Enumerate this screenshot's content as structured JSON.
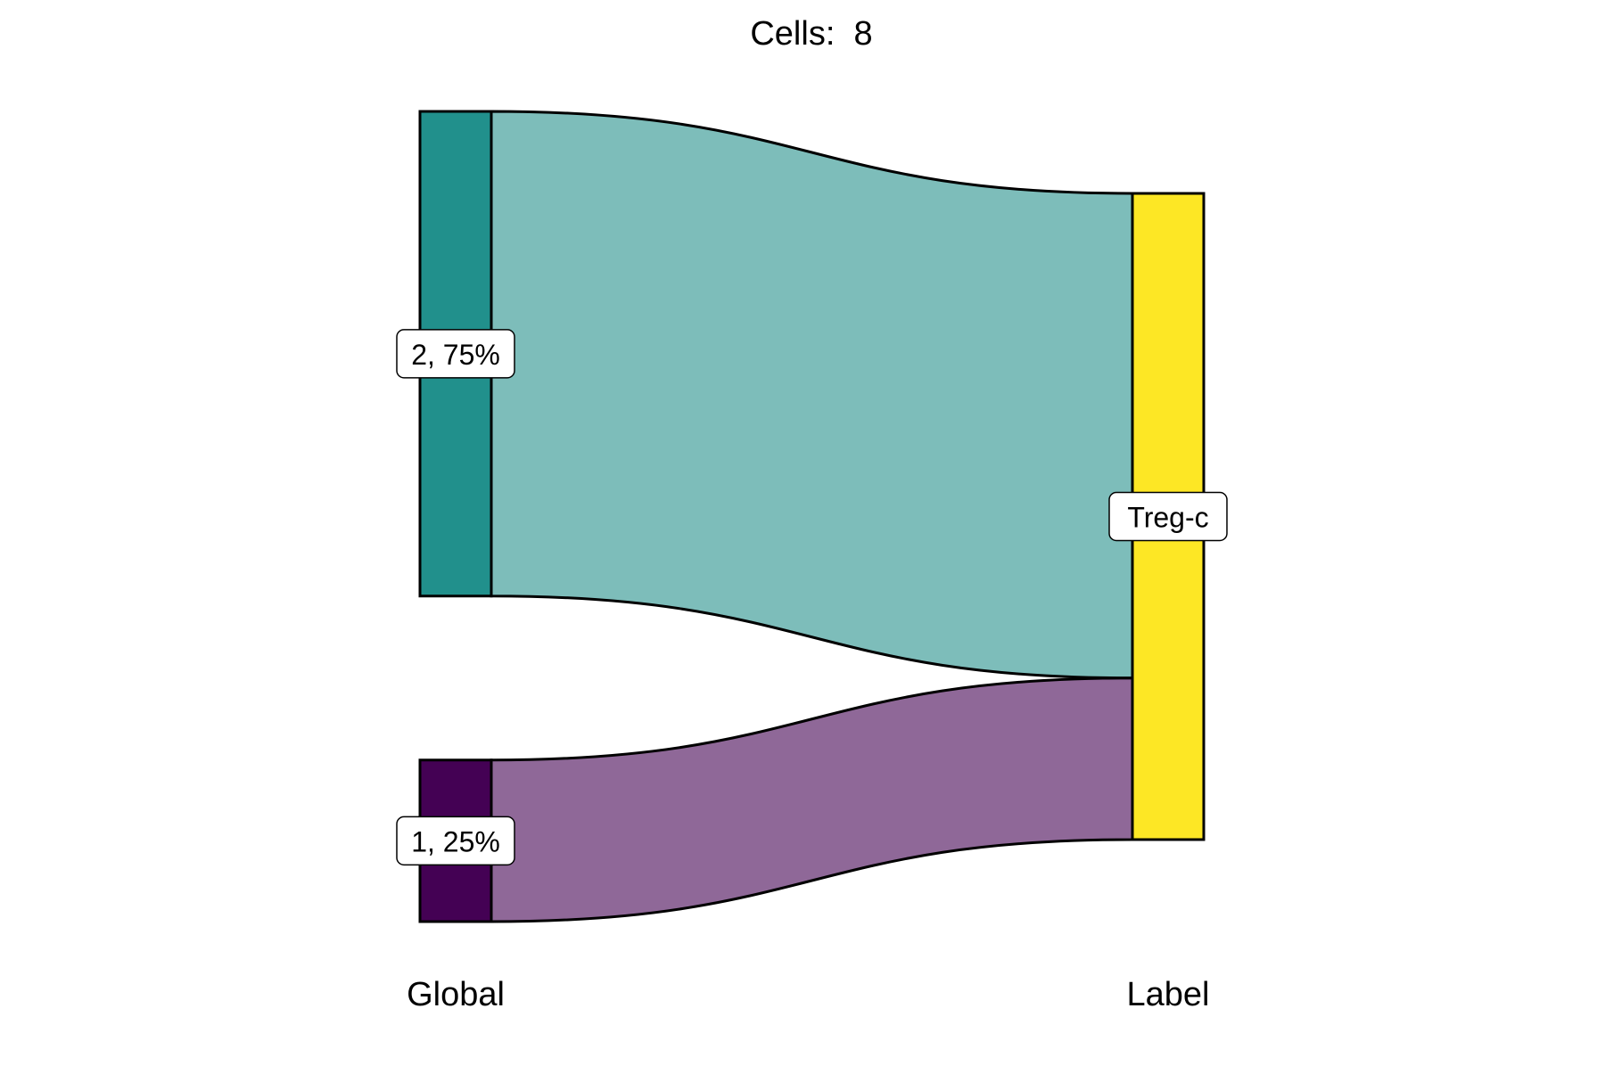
{
  "chart_data": {
    "type": "sankey",
    "title": "Cells:  8",
    "axes": [
      "Global",
      "Label"
    ],
    "nodes": [
      {
        "id": "g2",
        "axis": 0,
        "label": "2, 75%",
        "value": 6,
        "color": "#21908c"
      },
      {
        "id": "g1",
        "axis": 0,
        "label": "1, 25%",
        "value": 2,
        "color": "#440154"
      },
      {
        "id": "treg",
        "axis": 1,
        "label": "Treg-c",
        "value": 8,
        "color": "#fde725"
      }
    ],
    "links": [
      {
        "source": "g2",
        "target": "treg",
        "value": 6,
        "color": "#7dbdba"
      },
      {
        "source": "g1",
        "target": "treg",
        "value": 2,
        "color": "#8f6898"
      }
    ]
  }
}
